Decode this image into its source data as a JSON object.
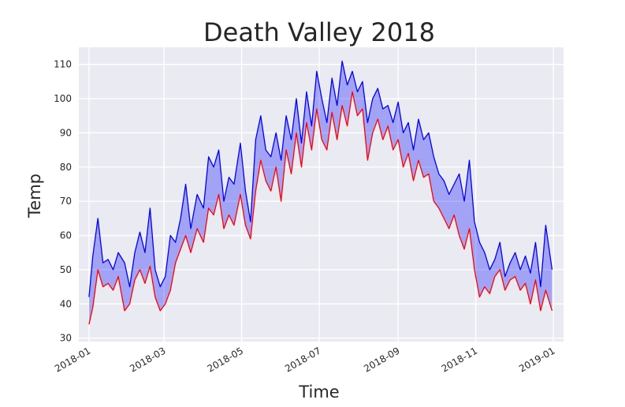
{
  "chart_data": {
    "type": "line",
    "title": "Death Valley 2018",
    "xlabel": "Time",
    "ylabel": "Temp",
    "x_ticks": [
      "2018-01",
      "2018-03",
      "2018-05",
      "2018-07",
      "2018-09",
      "2018-11",
      "2019-01"
    ],
    "y_ticks": [
      30,
      40,
      50,
      60,
      70,
      80,
      90,
      100,
      110
    ],
    "xlim": [
      "2017-12-24",
      "2019-01-09"
    ],
    "ylim": [
      29,
      115
    ],
    "grid": true,
    "fill_between": {
      "color": "#0000ff",
      "opacity": 0.3
    },
    "series": [
      {
        "color": "#0000ff",
        "points": [
          [
            "2018-01-01",
            42
          ],
          [
            "2018-01-04",
            54
          ],
          [
            "2018-01-08",
            65
          ],
          [
            "2018-01-12",
            52
          ],
          [
            "2018-01-16",
            53
          ],
          [
            "2018-01-20",
            50
          ],
          [
            "2018-01-24",
            55
          ],
          [
            "2018-01-29",
            52
          ],
          [
            "2018-02-02",
            45
          ],
          [
            "2018-02-06",
            55
          ],
          [
            "2018-02-10",
            61
          ],
          [
            "2018-02-14",
            55
          ],
          [
            "2018-02-18",
            68
          ],
          [
            "2018-02-22",
            50
          ],
          [
            "2018-02-26",
            45
          ],
          [
            "2018-03-02",
            48
          ],
          [
            "2018-03-06",
            60
          ],
          [
            "2018-03-10",
            58
          ],
          [
            "2018-03-14",
            65
          ],
          [
            "2018-03-18",
            75
          ],
          [
            "2018-03-22",
            62
          ],
          [
            "2018-03-27",
            72
          ],
          [
            "2018-04-01",
            68
          ],
          [
            "2018-04-05",
            83
          ],
          [
            "2018-04-09",
            80
          ],
          [
            "2018-04-13",
            85
          ],
          [
            "2018-04-17",
            70
          ],
          [
            "2018-04-21",
            77
          ],
          [
            "2018-04-25",
            75
          ],
          [
            "2018-04-30",
            87
          ],
          [
            "2018-05-04",
            73
          ],
          [
            "2018-05-08",
            64
          ],
          [
            "2018-05-12",
            88
          ],
          [
            "2018-05-16",
            95
          ],
          [
            "2018-05-20",
            85
          ],
          [
            "2018-05-24",
            83
          ],
          [
            "2018-05-28",
            90
          ],
          [
            "2018-06-01",
            82
          ],
          [
            "2018-06-05",
            95
          ],
          [
            "2018-06-09",
            88
          ],
          [
            "2018-06-13",
            100
          ],
          [
            "2018-06-17",
            87
          ],
          [
            "2018-06-21",
            102
          ],
          [
            "2018-06-25",
            92
          ],
          [
            "2018-06-29",
            108
          ],
          [
            "2018-07-03",
            100
          ],
          [
            "2018-07-07",
            93
          ],
          [
            "2018-07-11",
            106
          ],
          [
            "2018-07-15",
            98
          ],
          [
            "2018-07-19",
            111
          ],
          [
            "2018-07-23",
            104
          ],
          [
            "2018-07-27",
            108
          ],
          [
            "2018-07-31",
            102
          ],
          [
            "2018-08-04",
            105
          ],
          [
            "2018-08-08",
            93
          ],
          [
            "2018-08-12",
            100
          ],
          [
            "2018-08-16",
            103
          ],
          [
            "2018-08-20",
            97
          ],
          [
            "2018-08-24",
            98
          ],
          [
            "2018-08-28",
            93
          ],
          [
            "2018-09-01",
            99
          ],
          [
            "2018-09-05",
            90
          ],
          [
            "2018-09-09",
            93
          ],
          [
            "2018-09-13",
            85
          ],
          [
            "2018-09-17",
            94
          ],
          [
            "2018-09-21",
            88
          ],
          [
            "2018-09-25",
            90
          ],
          [
            "2018-09-29",
            83
          ],
          [
            "2018-10-03",
            78
          ],
          [
            "2018-10-07",
            76
          ],
          [
            "2018-10-11",
            72
          ],
          [
            "2018-10-15",
            75
          ],
          [
            "2018-10-19",
            78
          ],
          [
            "2018-10-23",
            70
          ],
          [
            "2018-10-27",
            82
          ],
          [
            "2018-10-31",
            64
          ],
          [
            "2018-11-04",
            58
          ],
          [
            "2018-11-08",
            55
          ],
          [
            "2018-11-12",
            50
          ],
          [
            "2018-11-16",
            53
          ],
          [
            "2018-11-20",
            58
          ],
          [
            "2018-11-24",
            48
          ],
          [
            "2018-11-28",
            52
          ],
          [
            "2018-12-02",
            55
          ],
          [
            "2018-12-06",
            50
          ],
          [
            "2018-12-10",
            54
          ],
          [
            "2018-12-14",
            49
          ],
          [
            "2018-12-18",
            58
          ],
          [
            "2018-12-22",
            45
          ],
          [
            "2018-12-26",
            63
          ],
          [
            "2018-12-31",
            50
          ]
        ]
      },
      {
        "color": "#ff0000",
        "points": [
          [
            "2018-01-01",
            34
          ],
          [
            "2018-01-04",
            39
          ],
          [
            "2018-01-08",
            50
          ],
          [
            "2018-01-12",
            45
          ],
          [
            "2018-01-16",
            46
          ],
          [
            "2018-01-20",
            44
          ],
          [
            "2018-01-24",
            48
          ],
          [
            "2018-01-29",
            38
          ],
          [
            "2018-02-02",
            40
          ],
          [
            "2018-02-06",
            47
          ],
          [
            "2018-02-10",
            50
          ],
          [
            "2018-02-14",
            46
          ],
          [
            "2018-02-18",
            51
          ],
          [
            "2018-02-22",
            42
          ],
          [
            "2018-02-26",
            38
          ],
          [
            "2018-03-02",
            40
          ],
          [
            "2018-03-06",
            44
          ],
          [
            "2018-03-10",
            52
          ],
          [
            "2018-03-14",
            56
          ],
          [
            "2018-03-18",
            60
          ],
          [
            "2018-03-22",
            55
          ],
          [
            "2018-03-27",
            62
          ],
          [
            "2018-04-01",
            58
          ],
          [
            "2018-04-05",
            68
          ],
          [
            "2018-04-09",
            66
          ],
          [
            "2018-04-13",
            72
          ],
          [
            "2018-04-17",
            62
          ],
          [
            "2018-04-21",
            66
          ],
          [
            "2018-04-25",
            63
          ],
          [
            "2018-04-30",
            72
          ],
          [
            "2018-05-04",
            63
          ],
          [
            "2018-05-08",
            59
          ],
          [
            "2018-05-12",
            73
          ],
          [
            "2018-05-16",
            82
          ],
          [
            "2018-05-20",
            76
          ],
          [
            "2018-05-24",
            73
          ],
          [
            "2018-05-28",
            80
          ],
          [
            "2018-06-01",
            70
          ],
          [
            "2018-06-05",
            85
          ],
          [
            "2018-06-09",
            78
          ],
          [
            "2018-06-13",
            90
          ],
          [
            "2018-06-17",
            80
          ],
          [
            "2018-06-21",
            93
          ],
          [
            "2018-06-25",
            85
          ],
          [
            "2018-06-29",
            97
          ],
          [
            "2018-07-03",
            88
          ],
          [
            "2018-07-07",
            85
          ],
          [
            "2018-07-11",
            96
          ],
          [
            "2018-07-15",
            88
          ],
          [
            "2018-07-19",
            98
          ],
          [
            "2018-07-23",
            92
          ],
          [
            "2018-07-27",
            102
          ],
          [
            "2018-07-31",
            95
          ],
          [
            "2018-08-04",
            97
          ],
          [
            "2018-08-08",
            82
          ],
          [
            "2018-08-12",
            90
          ],
          [
            "2018-08-16",
            94
          ],
          [
            "2018-08-20",
            88
          ],
          [
            "2018-08-24",
            92
          ],
          [
            "2018-08-28",
            85
          ],
          [
            "2018-09-01",
            88
          ],
          [
            "2018-09-05",
            80
          ],
          [
            "2018-09-09",
            84
          ],
          [
            "2018-09-13",
            76
          ],
          [
            "2018-09-17",
            82
          ],
          [
            "2018-09-21",
            77
          ],
          [
            "2018-09-25",
            78
          ],
          [
            "2018-09-29",
            70
          ],
          [
            "2018-10-03",
            68
          ],
          [
            "2018-10-07",
            65
          ],
          [
            "2018-10-11",
            62
          ],
          [
            "2018-10-15",
            66
          ],
          [
            "2018-10-19",
            60
          ],
          [
            "2018-10-23",
            56
          ],
          [
            "2018-10-27",
            62
          ],
          [
            "2018-10-31",
            50
          ],
          [
            "2018-11-04",
            42
          ],
          [
            "2018-11-08",
            45
          ],
          [
            "2018-11-12",
            43
          ],
          [
            "2018-11-16",
            48
          ],
          [
            "2018-11-20",
            50
          ],
          [
            "2018-11-24",
            44
          ],
          [
            "2018-11-28",
            47
          ],
          [
            "2018-12-02",
            48
          ],
          [
            "2018-12-06",
            44
          ],
          [
            "2018-12-10",
            46
          ],
          [
            "2018-12-14",
            40
          ],
          [
            "2018-12-18",
            47
          ],
          [
            "2018-12-22",
            38
          ],
          [
            "2018-12-26",
            44
          ],
          [
            "2018-12-31",
            38
          ]
        ]
      }
    ]
  }
}
